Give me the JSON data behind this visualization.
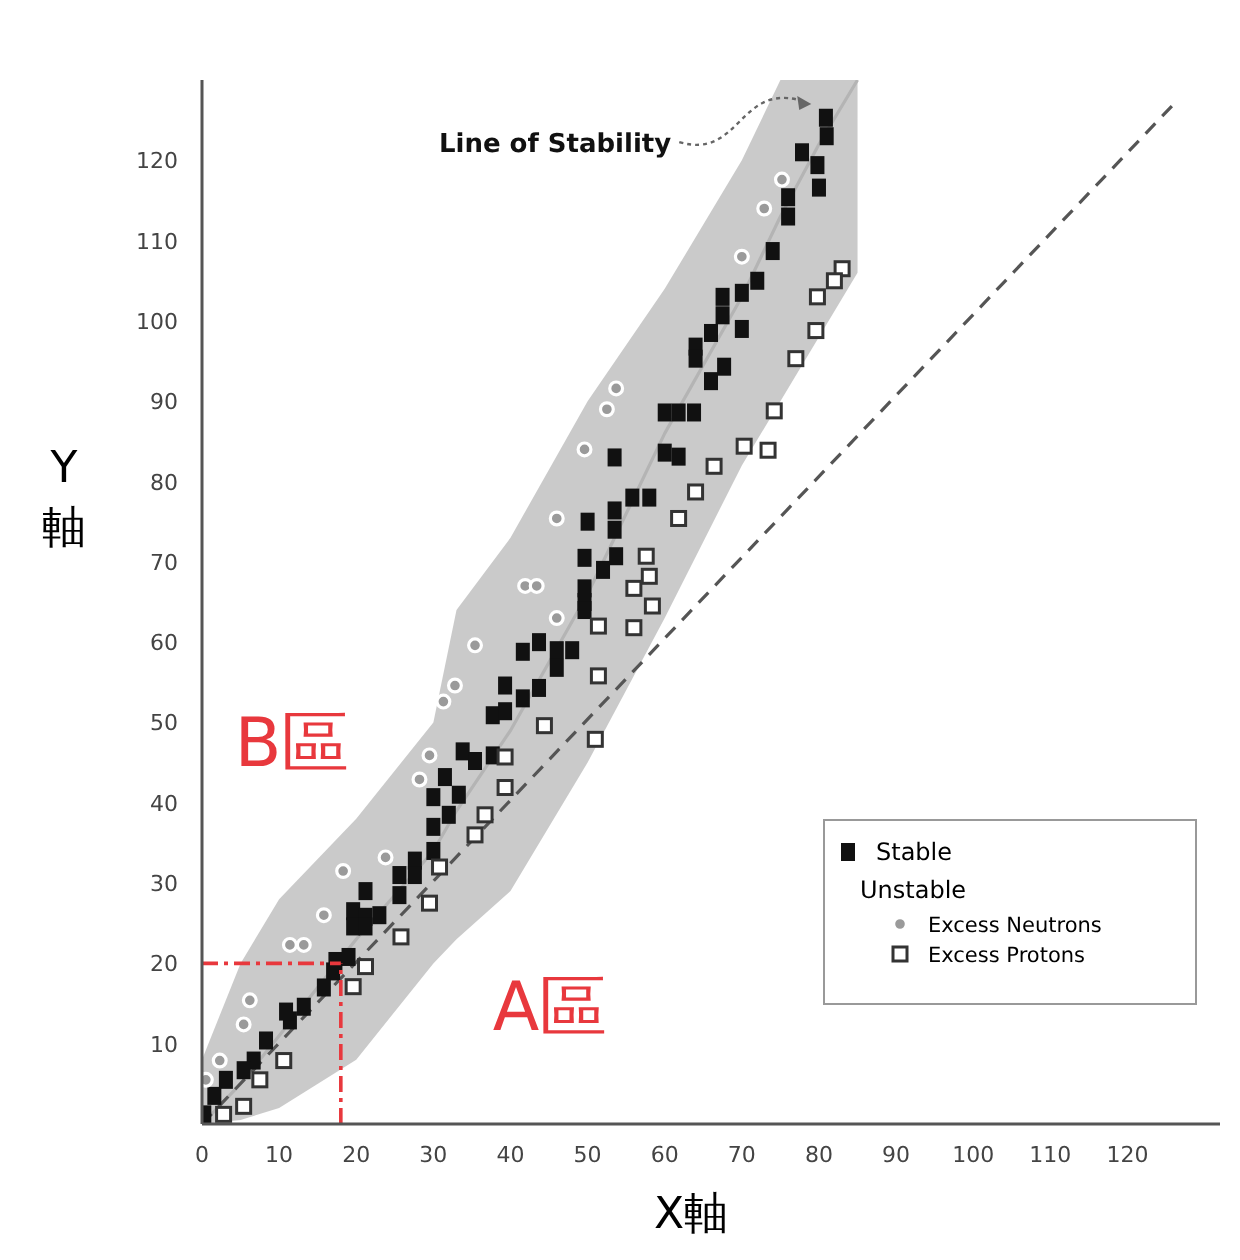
{
  "chart_data": {
    "type": "scatter",
    "xlabel": "X軸",
    "ylabel": "Y軸",
    "xlim": [
      0,
      132
    ],
    "ylim": [
      0,
      130
    ],
    "xticks": [
      0,
      10,
      20,
      30,
      40,
      50,
      60,
      70,
      80,
      90,
      100,
      110,
      120
    ],
    "yticks": [
      10,
      20,
      30,
      40,
      50,
      60,
      70,
      80,
      90,
      100,
      110,
      120
    ],
    "grid": false,
    "legend": "bottom right",
    "series": [
      {
        "type": "line",
        "color": "#b4b4b4",
        "marker": "none",
        "x": [
          0,
          5,
          10,
          20,
          30,
          33,
          40,
          50,
          60,
          70,
          75,
          80,
          85
        ],
        "values": [
          0,
          5,
          11,
          23,
          34,
          39,
          49,
          66,
          86,
          103,
          113,
          122,
          130
        ],
        "lower": [
          0,
          0.5,
          2,
          8,
          20,
          23,
          29,
          45,
          63,
          82,
          90,
          98,
          106
        ],
        "upper": [
          8,
          20,
          28,
          38,
          50,
          64,
          73,
          90,
          104,
          120,
          130,
          130,
          130
        ]
      },
      {
        "type": "line",
        "color": "#555555",
        "line_style": "dashed",
        "marker": "none",
        "x": [
          0,
          126
        ],
        "values": [
          0,
          127
        ]
      },
      {
        "name": "Stable",
        "color": "#111111",
        "marker": "square",
        "x": [
          80.9,
          81,
          77.8,
          79.8,
          80,
          76,
          76,
          74,
          72,
          70,
          67.5,
          67.5,
          70,
          66,
          64,
          64,
          67.7,
          66,
          60,
          61.8,
          63.8,
          60,
          61.8,
          53.5,
          55.8,
          58,
          50,
          53.5,
          53.5,
          49.6,
          52,
          53.7,
          49.6,
          49.6,
          49.6,
          46,
          48,
          41.6,
          43.7,
          46,
          39.3,
          41.6,
          43.7,
          37.7,
          39.3,
          33.8,
          35.4,
          37.7,
          31.5,
          30,
          33.3,
          32,
          30,
          30,
          27.6,
          27.6,
          25.6,
          25.6,
          21.2,
          19.6,
          21.2,
          23,
          19.6,
          21.2,
          17.3,
          19,
          17,
          15.8,
          13.2,
          11.4,
          10.9,
          8.3,
          6.7,
          5.4,
          3.1,
          1.6,
          0.3
        ],
        "values": [
          125.3,
          123,
          121,
          119.4,
          116.6,
          115.4,
          113,
          108.7,
          105,
          103.5,
          103,
          100.7,
          99,
          98.5,
          96.8,
          95.3,
          94.3,
          92.5,
          88.6,
          88.6,
          88.6,
          83.6,
          83.1,
          83,
          78,
          78,
          75,
          76.4,
          74,
          70.5,
          69,
          70.7,
          66.7,
          65,
          64,
          59,
          59,
          58.8,
          60,
          56.8,
          54.6,
          53,
          54.3,
          50.9,
          51.4,
          46.4,
          45.2,
          45.9,
          43.2,
          40.7,
          41,
          38.5,
          37,
          34,
          32.8,
          31,
          31,
          28.5,
          29,
          26.5,
          25.8,
          26,
          24.6,
          24.6,
          20.3,
          20.8,
          19,
          17,
          14.6,
          12.9,
          14,
          10.4,
          7.9,
          6.7,
          5.5,
          3.5,
          1.2
        ]
      },
      {
        "name": "Excess Neutrons",
        "color": "#9a9a9a",
        "marker": "circle",
        "x": [
          35.4,
          32.8,
          31.3,
          29.5,
          28.2,
          23.8,
          18.3,
          15.8,
          13.2,
          11.4,
          6.2,
          5.4,
          2.3,
          0.5,
          46,
          46,
          41.9,
          43.4,
          49.6,
          52.5,
          53.7,
          70,
          75.2,
          72.9
        ],
        "values": [
          59.6,
          54.6,
          52.6,
          45.9,
          42.9,
          33.2,
          31.5,
          26,
          22.3,
          22.3,
          15.4,
          12.4,
          7.9,
          5.5,
          63,
          75.4,
          67,
          67,
          84,
          89,
          91.6,
          108,
          117.6,
          114
        ]
      },
      {
        "name": "Excess Protons",
        "color": "#333333",
        "marker": "square_open",
        "x": [
          83,
          82,
          79.8,
          79.6,
          77,
          74.2,
          70.3,
          73.4,
          66.4,
          64,
          61.8,
          57.6,
          58,
          56,
          58.4,
          56,
          51.4,
          51.4,
          51,
          44.4,
          39.3,
          39.3,
          36.7,
          35.4,
          30.8,
          29.5,
          25.8,
          21.2,
          19.6,
          10.6,
          7.5,
          5.4,
          2.8
        ],
        "values": [
          106.5,
          105,
          103,
          98.8,
          95.3,
          88.8,
          84.4,
          83.9,
          81.9,
          78.7,
          75.4,
          70.7,
          68.2,
          66.7,
          64.5,
          61.8,
          62,
          55.8,
          47.9,
          49.6,
          45.7,
          41.9,
          38.5,
          36,
          32,
          27.5,
          23.3,
          19.6,
          17.1,
          7.9,
          5.5,
          2.2,
          1.2
        ]
      }
    ],
    "ref_lines": [
      {
        "axis": "x",
        "value": 18,
        "color": "#e8383d",
        "line_style": "dashed"
      },
      {
        "axis": "y",
        "value": 20,
        "color": "#e8383d",
        "line_style": "dashed"
      }
    ],
    "annotations": [
      {
        "text": "Line of Stability",
        "x": 79,
        "y": 127
      },
      "B區",
      "A區",
      "Unstable"
    ]
  }
}
